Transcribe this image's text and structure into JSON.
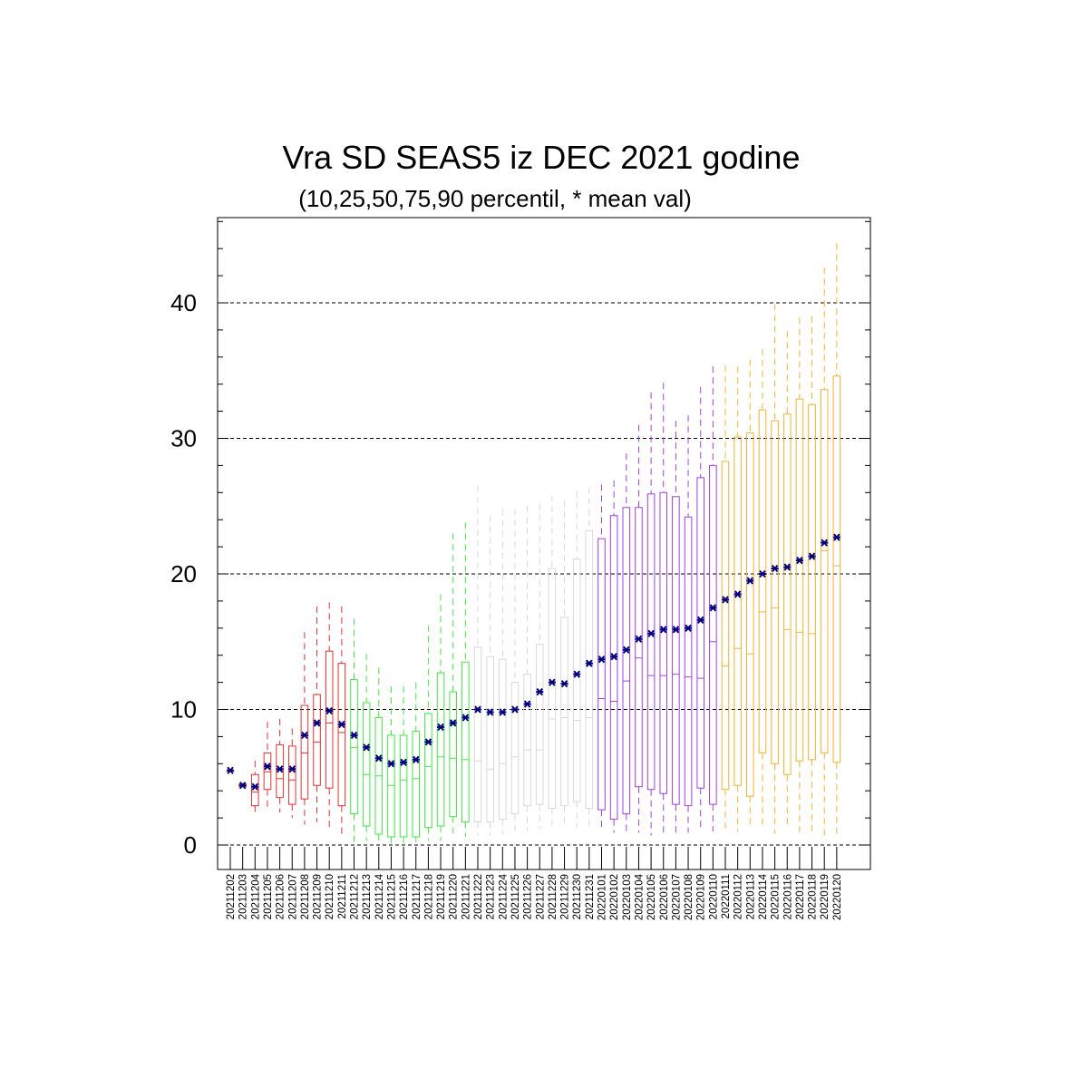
{
  "chart_data": {
    "type": "box",
    "title": "Vra SD SEAS5 iz DEC 2021 godine",
    "subtitle": "(10,25,50,75,90 percentil, * mean val)",
    "ylim": [
      -2,
      46
    ],
    "yticks": [
      "0",
      "10",
      "20",
      "30",
      "40"
    ],
    "grid": "dashed horizontal at 0,10,20,30,40",
    "mean_color": "#000080",
    "boxes": [
      {
        "label": "20211202",
        "color": "#e83030",
        "p10": 5.5,
        "p25": 5.5,
        "p50": 5.5,
        "p75": 5.5,
        "p90": 5.5,
        "mean": 5.5
      },
      {
        "label": "20211203",
        "color": "#e83030",
        "p10": 4.3,
        "p25": 4.3,
        "p50": 4.4,
        "p75": 4.5,
        "p90": 4.6,
        "mean": 4.4
      },
      {
        "label": "20211204",
        "color": "#e83030",
        "p10": 2.4,
        "p25": 2.9,
        "p50": 3.9,
        "p75": 5.2,
        "p90": 6.2,
        "mean": 4.3
      },
      {
        "label": "20211205",
        "color": "#e83030",
        "p10": 2.7,
        "p25": 4.1,
        "p50": 5.4,
        "p75": 6.8,
        "p90": 9.1,
        "mean": 5.8
      },
      {
        "label": "20211206",
        "color": "#e83030",
        "p10": 2.4,
        "p25": 3.5,
        "p50": 4.9,
        "p75": 7.4,
        "p90": 9.3,
        "mean": 5.6
      },
      {
        "label": "20211207",
        "color": "#e83030",
        "p10": 2.0,
        "p25": 3.0,
        "p50": 4.8,
        "p75": 7.3,
        "p90": 8.6,
        "mean": 5.6
      },
      {
        "label": "20211208",
        "color": "#e83030",
        "p10": 1.5,
        "p25": 3.4,
        "p50": 6.8,
        "p75": 10.3,
        "p90": 15.7,
        "mean": 8.1
      },
      {
        "label": "20211209",
        "color": "#e83030",
        "p10": 1.7,
        "p25": 4.4,
        "p50": 7.6,
        "p75": 11.1,
        "p90": 17.6,
        "mean": 9.0
      },
      {
        "label": "20211210",
        "color": "#e83030",
        "p10": 1.3,
        "p25": 4.2,
        "p50": 9.0,
        "p75": 14.3,
        "p90": 17.9,
        "mean": 9.9
      },
      {
        "label": "20211211",
        "color": "#e83030",
        "p10": 0.7,
        "p25": 2.9,
        "p50": 8.3,
        "p75": 13.4,
        "p90": 17.6,
        "mean": 8.9
      },
      {
        "label": "20211212",
        "color": "#40e840",
        "p10": 0.2,
        "p25": 2.3,
        "p50": 7.2,
        "p75": 12.2,
        "p90": 16.7,
        "mean": 8.1
      },
      {
        "label": "20211213",
        "color": "#40e840",
        "p10": 0.3,
        "p25": 1.4,
        "p50": 5.2,
        "p75": 10.5,
        "p90": 14.1,
        "mean": 7.2
      },
      {
        "label": "20211214",
        "color": "#40e840",
        "p10": 0.2,
        "p25": 0.8,
        "p50": 5.1,
        "p75": 9.4,
        "p90": 13.1,
        "mean": 6.4
      },
      {
        "label": "20211215",
        "color": "#40e840",
        "p10": 0.1,
        "p25": 0.6,
        "p50": 4.4,
        "p75": 8.1,
        "p90": 11.7,
        "mean": 6.0
      },
      {
        "label": "20211216",
        "color": "#40e840",
        "p10": 0.1,
        "p25": 0.6,
        "p50": 4.8,
        "p75": 8.1,
        "p90": 11.7,
        "mean": 6.1
      },
      {
        "label": "20211217",
        "color": "#40e840",
        "p10": 0.2,
        "p25": 0.6,
        "p50": 4.9,
        "p75": 8.4,
        "p90": 12.0,
        "mean": 6.3
      },
      {
        "label": "20211218",
        "color": "#40e840",
        "p10": 0.3,
        "p25": 1.3,
        "p50": 5.8,
        "p75": 9.7,
        "p90": 16.2,
        "mean": 7.6
      },
      {
        "label": "20211219",
        "color": "#40e840",
        "p10": 0.3,
        "p25": 1.4,
        "p50": 6.5,
        "p75": 12.7,
        "p90": 18.5,
        "mean": 8.7
      },
      {
        "label": "20211220",
        "color": "#40e840",
        "p10": 0.5,
        "p25": 2.1,
        "p50": 6.4,
        "p75": 11.3,
        "p90": 23.0,
        "mean": 9.0
      },
      {
        "label": "20211221",
        "color": "#40e840",
        "p10": 0.6,
        "p25": 1.7,
        "p50": 6.3,
        "p75": 13.5,
        "p90": 23.8,
        "mean": 9.4
      },
      {
        "label": "20211222",
        "color": "#d8d8d8",
        "p10": 0.7,
        "p25": 1.7,
        "p50": 6.2,
        "p75": 14.6,
        "p90": 26.5,
        "mean": 10.0
      },
      {
        "label": "20211223",
        "color": "#d8d8d8",
        "p10": 0.7,
        "p25": 1.7,
        "p50": 5.6,
        "p75": 13.9,
        "p90": 24.3,
        "mean": 9.8
      },
      {
        "label": "20211224",
        "color": "#d8d8d8",
        "p10": 0.8,
        "p25": 1.9,
        "p50": 6.0,
        "p75": 13.7,
        "p90": 24.8,
        "mean": 9.8
      },
      {
        "label": "20211225",
        "color": "#d8d8d8",
        "p10": 1.0,
        "p25": 2.3,
        "p50": 6.5,
        "p75": 12.0,
        "p90": 24.8,
        "mean": 10.0
      },
      {
        "label": "20211226",
        "color": "#d8d8d8",
        "p10": 1.0,
        "p25": 2.9,
        "p50": 7.0,
        "p75": 12.6,
        "p90": 25.0,
        "mean": 10.4
      },
      {
        "label": "20211227",
        "color": "#d8d8d8",
        "p10": 1.2,
        "p25": 3.0,
        "p50": 7.0,
        "p75": 14.8,
        "p90": 25.2,
        "mean": 11.3
      },
      {
        "label": "20211228",
        "color": "#d8d8d8",
        "p10": 1.4,
        "p25": 2.7,
        "p50": 9.3,
        "p75": 20.4,
        "p90": 25.8,
        "mean": 12.0
      },
      {
        "label": "20211229",
        "color": "#d8d8d8",
        "p10": 1.6,
        "p25": 2.9,
        "p50": 9.4,
        "p75": 16.8,
        "p90": 25.4,
        "mean": 11.9
      },
      {
        "label": "20211230",
        "color": "#d8d8d8",
        "p10": 1.3,
        "p25": 3.2,
        "p50": 9.2,
        "p75": 21.1,
        "p90": 26.1,
        "mean": 12.6
      },
      {
        "label": "20211231",
        "color": "#d8d8d8",
        "p10": 1.4,
        "p25": 2.7,
        "p50": 9.4,
        "p75": 23.2,
        "p90": 26.4,
        "mean": 13.4
      },
      {
        "label": "20220101",
        "color": "#a040e8",
        "p10": 1.2,
        "p25": 2.6,
        "p50": 10.8,
        "p75": 22.6,
        "p90": 26.6,
        "mean": 13.7
      },
      {
        "label": "20220102",
        "color": "#a040e8",
        "p10": 0.9,
        "p25": 1.9,
        "p50": 10.6,
        "p75": 24.3,
        "p90": 26.9,
        "mean": 13.9
      },
      {
        "label": "20220103",
        "color": "#a040e8",
        "p10": 1.0,
        "p25": 2.3,
        "p50": 12.1,
        "p75": 24.9,
        "p90": 28.9,
        "mean": 14.4
      },
      {
        "label": "20220104",
        "color": "#a040e8",
        "p10": 0.9,
        "p25": 4.3,
        "p50": 13.8,
        "p75": 24.9,
        "p90": 31.0,
        "mean": 15.2
      },
      {
        "label": "20220105",
        "color": "#a040e8",
        "p10": 0.7,
        "p25": 4.1,
        "p50": 12.5,
        "p75": 25.9,
        "p90": 33.4,
        "mean": 15.6
      },
      {
        "label": "20220106",
        "color": "#a040e8",
        "p10": 0.7,
        "p25": 3.8,
        "p50": 12.5,
        "p75": 26.0,
        "p90": 34.1,
        "mean": 15.9
      },
      {
        "label": "20220107",
        "color": "#a040e8",
        "p10": 0.8,
        "p25": 3.0,
        "p50": 12.6,
        "p75": 25.7,
        "p90": 31.3,
        "mean": 15.9
      },
      {
        "label": "20220108",
        "color": "#a040e8",
        "p10": 0.9,
        "p25": 2.9,
        "p50": 12.4,
        "p75": 24.2,
        "p90": 31.7,
        "mean": 16.0
      },
      {
        "label": "20220109",
        "color": "#a040e8",
        "p10": 1.0,
        "p25": 4.2,
        "p50": 12.3,
        "p75": 27.1,
        "p90": 33.8,
        "mean": 16.6
      },
      {
        "label": "20220110",
        "color": "#a040e8",
        "p10": 1.0,
        "p25": 3.0,
        "p50": 15.0,
        "p75": 28.0,
        "p90": 35.3,
        "mean": 17.5
      },
      {
        "label": "20220111",
        "color": "#f5b030",
        "p10": 1.0,
        "p25": 4.1,
        "p50": 13.2,
        "p75": 28.3,
        "p90": 35.4,
        "mean": 18.1
      },
      {
        "label": "20220112",
        "color": "#f5b030",
        "p10": 1.0,
        "p25": 4.4,
        "p50": 14.5,
        "p75": 30.1,
        "p90": 35.3,
        "mean": 18.5
      },
      {
        "label": "20220113",
        "color": "#f5b030",
        "p10": 1.2,
        "p25": 3.6,
        "p50": 14.1,
        "p75": 30.4,
        "p90": 35.8,
        "mean": 19.5
      },
      {
        "label": "20220114",
        "color": "#f5b030",
        "p10": 1.2,
        "p25": 6.8,
        "p50": 17.2,
        "p75": 32.1,
        "p90": 36.6,
        "mean": 20.0
      },
      {
        "label": "20220115",
        "color": "#f5b030",
        "p10": 0.8,
        "p25": 6.0,
        "p50": 17.5,
        "p75": 31.3,
        "p90": 39.9,
        "mean": 20.4
      },
      {
        "label": "20220116",
        "color": "#f5b030",
        "p10": 1.2,
        "p25": 5.2,
        "p50": 15.9,
        "p75": 31.8,
        "p90": 37.9,
        "mean": 20.5
      },
      {
        "label": "20220117",
        "color": "#f5b030",
        "p10": 0.9,
        "p25": 6.2,
        "p50": 15.7,
        "p75": 32.9,
        "p90": 38.9,
        "mean": 21.0
      },
      {
        "label": "20220118",
        "color": "#f5b030",
        "p10": 0.7,
        "p25": 6.3,
        "p50": 15.6,
        "p75": 32.5,
        "p90": 39.0,
        "mean": 21.3
      },
      {
        "label": "20220119",
        "color": "#f5b030",
        "p10": 0.5,
        "p25": 6.8,
        "p50": 21.7,
        "p75": 33.6,
        "p90": 42.6,
        "mean": 22.3
      },
      {
        "label": "20220120",
        "color": "#f5b030",
        "p10": 0.8,
        "p25": 6.1,
        "p50": 20.6,
        "p75": 34.6,
        "p90": 44.4,
        "mean": 22.7
      }
    ]
  }
}
